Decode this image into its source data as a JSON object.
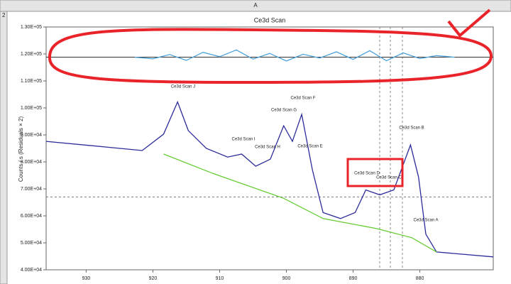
{
  "header": {
    "column": "A",
    "row": "2"
  },
  "chart_data": {
    "type": "line",
    "title": "Ce3d Scan",
    "y_label": "Counts / s (Residuals × 2)",
    "xlim": [
      936,
      869
    ],
    "ylim": [
      40000,
      130000
    ],
    "xticks": [
      930,
      920,
      910,
      900,
      890,
      880
    ],
    "yticks": [
      {
        "value": 40000,
        "label": "4.00E+04"
      },
      {
        "value": 50000,
        "label": "5.00E+04"
      },
      {
        "value": 60000,
        "label": "6.00E+04"
      },
      {
        "value": 70000,
        "label": "7.00E+04"
      },
      {
        "value": 80000,
        "label": "8.00E+04"
      },
      {
        "value": 90000,
        "label": "9.00E+04"
      },
      {
        "value": 100000,
        "label": "1.00E+05"
      },
      {
        "value": 110000,
        "label": "1.10E+05"
      },
      {
        "value": 120000,
        "label": "1.20E+05"
      },
      {
        "value": 130000,
        "label": "1.30E+05"
      }
    ],
    "reference_lines": [
      118800,
      67000
    ],
    "series": [
      {
        "color": "#2b2b9a",
        "x": [
          936,
          927,
          921.6,
          918.4,
          916.3,
          914.7,
          912,
          908.8,
          906.7,
          904.6,
          902.4,
          900.4,
          899.1,
          897.7,
          896.1,
          894.5,
          891.9,
          889.7,
          888.1,
          886,
          883.9,
          881.4,
          880.2,
          879.1,
          877.5,
          869
        ],
        "values": [
          87600,
          85500,
          84200,
          90300,
          102200,
          91600,
          85000,
          81800,
          82900,
          78400,
          81000,
          93400,
          87600,
          97600,
          77000,
          61200,
          59000,
          61200,
          69600,
          67800,
          69600,
          86300,
          74400,
          53200,
          46600,
          44800
        ]
      },
      {
        "color": "#66cc33",
        "x": [
          918.4,
          911,
          900.4,
          894.5,
          886.5,
          881.2,
          877.5
        ],
        "values": [
          82900,
          75700,
          66500,
          59000,
          55300,
          51900,
          46600
        ]
      },
      {
        "color": "#4da3dc",
        "x": [
          922.7,
          920,
          917.5,
          915,
          912.5,
          910,
          907.5,
          905,
          902.5,
          900,
          897.5,
          895,
          892.5,
          890,
          887.5,
          885,
          882.5,
          880,
          877.5,
          874.8
        ],
        "values": [
          118800,
          118200,
          119800,
          117600,
          120600,
          119000,
          121500,
          118100,
          120200,
          117400,
          119900,
          118500,
          120800,
          118000,
          121200,
          117500,
          120400,
          118300,
          119400,
          118800
        ]
      }
    ],
    "annotations": [
      "Ce3d Scan J",
      "Ce3d Scan I",
      "Ce3d Scan H",
      "Ce3d Scan G",
      "Ce3d Scan F",
      "Ce3d Scan E",
      "Ce3d Scan D",
      "Ce3d Scan C",
      "Ce3d Scan B",
      "Ce3d Scan A"
    ]
  }
}
